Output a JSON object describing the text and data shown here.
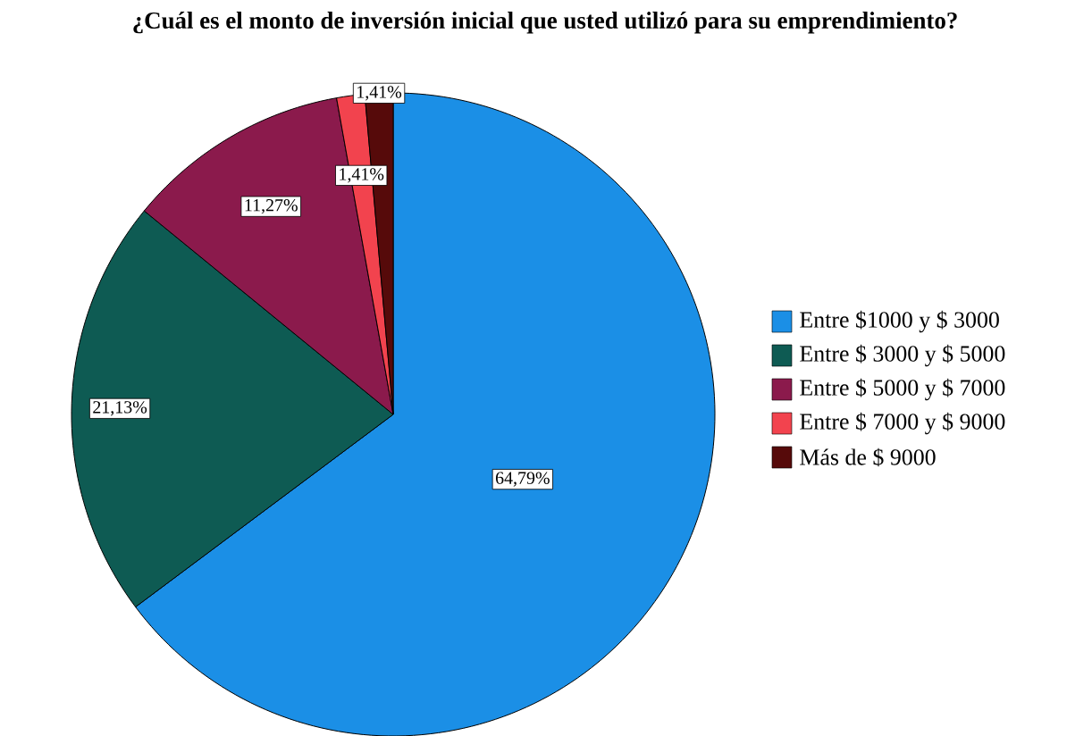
{
  "chart_data": {
    "type": "pie",
    "title": "¿Cuál es el monto de inversión inicial que usted utilizó para su emprendimiento?",
    "categories": [
      "Entre $1000 y $ 3000",
      "Entre $ 3000 y $ 5000",
      "Entre $ 5000 y $ 7000",
      "Entre $ 7000 y $ 9000",
      "Más de $ 9000"
    ],
    "values": [
      64.79,
      21.13,
      11.27,
      1.41,
      1.41
    ],
    "colors": [
      "#1b8fe6",
      "#0e5b53",
      "#8b1a4c",
      "#f2434e",
      "#560a0a"
    ],
    "value_labels": [
      "64,79%",
      "21,13%",
      "11,27%",
      "1,41%",
      "1,41%"
    ],
    "legend": "right"
  }
}
